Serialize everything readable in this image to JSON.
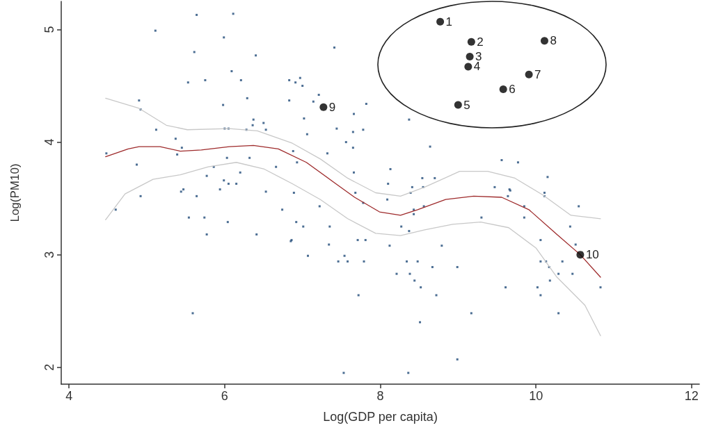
{
  "chart_data": {
    "type": "scatter",
    "xlabel": "Log(GDP per capita)",
    "ylabel": "Log(PM10)",
    "xlim": [
      3.9,
      12.1
    ],
    "ylim": [
      1.85,
      5.25
    ],
    "xticks": [
      4,
      6,
      8,
      10,
      12
    ],
    "yticks": [
      2,
      3,
      4,
      5
    ],
    "grid": false,
    "annotations": [
      {
        "text": "1",
        "x": 8.77,
        "y": 5.07
      },
      {
        "text": "2",
        "x": 9.17,
        "y": 4.89
      },
      {
        "text": "3",
        "x": 9.15,
        "y": 4.76
      },
      {
        "text": "4",
        "x": 9.13,
        "y": 4.67
      },
      {
        "text": "5",
        "x": 9.0,
        "y": 4.33
      },
      {
        "text": "6",
        "x": 9.58,
        "y": 4.47
      },
      {
        "text": "7",
        "x": 9.91,
        "y": 4.6
      },
      {
        "text": "8",
        "x": 10.11,
        "y": 4.9
      },
      {
        "text": "9",
        "x": 7.27,
        "y": 4.31
      },
      {
        "text": "10",
        "x": 10.57,
        "y": 3.0
      }
    ],
    "series": [
      {
        "marker": "square",
        "color": "#1f4a78",
        "x": [
          5.64,
          6.11,
          5.11,
          5.99,
          5.61,
          6.4,
          6.09,
          5.53,
          5.75,
          6.21,
          6.83,
          4.9,
          6.29,
          6.83,
          4.92,
          5.98,
          6.37,
          6.36,
          6.5,
          6.0,
          6.05,
          6.28,
          6.53,
          5.12,
          5.37,
          4.48,
          5.45,
          5.39,
          4.87,
          6.03,
          6.32,
          5.86,
          6.66,
          6.2,
          5.77,
          5.99,
          6.05,
          6.15,
          5.47,
          5.44,
          5.94,
          6.53,
          4.92,
          5.64,
          4.6,
          6.74,
          5.54,
          5.74,
          6.04,
          5.77,
          6.41,
          6.85,
          5.59,
          7.41,
          6.97,
          7.0,
          6.91,
          7.21,
          7.14,
          7.82,
          7.66,
          7.02,
          8.37,
          7.44,
          7.65,
          7.78,
          7.06,
          7.56,
          7.65,
          8.64,
          6.88,
          7.32,
          6.93,
          9.56,
          7.66,
          8.13,
          8.1,
          8.54,
          8.7,
          8.41,
          8.55,
          6.89,
          7.68,
          8.39,
          9.47,
          9.66,
          9.64,
          7.22,
          8.09,
          8.56,
          7.78,
          8.43,
          8.43,
          9.3,
          6.92,
          7.01,
          7.35,
          8.27,
          8.37,
          6.86,
          7.34,
          7.71,
          7.81,
          8.12,
          8.79,
          7.07,
          7.54,
          7.46,
          7.58,
          7.79,
          8.34,
          8.48,
          8.67,
          8.99,
          8.21,
          8.38,
          8.44,
          8.52,
          9.61,
          7.72,
          8.72,
          9.17,
          8.51,
          8.99,
          7.53,
          8.36,
          9.77,
          10.15,
          9.67,
          10.11,
          10.11,
          9.85,
          10.55,
          9.85,
          10.44,
          10.06,
          10.51,
          10.06,
          10.13,
          10.34,
          10.17,
          10.29,
          10.47,
          10.18,
          10.02,
          10.83,
          10.06,
          10.29
        ],
        "values": [
          5.13,
          5.14,
          4.99,
          4.93,
          4.8,
          4.77,
          4.63,
          4.53,
          4.55,
          4.55,
          4.55,
          4.37,
          4.39,
          4.37,
          4.29,
          4.33,
          4.2,
          4.15,
          4.17,
          4.12,
          4.12,
          4.11,
          4.11,
          4.11,
          4.03,
          3.9,
          3.95,
          3.89,
          3.8,
          3.86,
          3.86,
          3.78,
          3.78,
          3.73,
          3.7,
          3.66,
          3.63,
          3.63,
          3.58,
          3.56,
          3.58,
          3.56,
          3.52,
          3.52,
          3.4,
          3.4,
          3.33,
          3.33,
          3.29,
          3.18,
          3.18,
          3.12,
          2.48,
          4.84,
          4.57,
          4.5,
          4.53,
          4.42,
          4.36,
          4.34,
          4.25,
          4.21,
          4.2,
          4.12,
          4.09,
          4.11,
          4.07,
          4.0,
          3.95,
          3.96,
          3.92,
          3.9,
          3.82,
          3.84,
          3.73,
          3.76,
          3.63,
          3.68,
          3.68,
          3.6,
          3.6,
          3.55,
          3.55,
          3.55,
          3.6,
          3.58,
          3.52,
          3.43,
          3.49,
          3.43,
          3.46,
          3.4,
          3.36,
          3.33,
          3.29,
          3.25,
          3.25,
          3.25,
          3.21,
          3.13,
          3.09,
          3.13,
          3.13,
          3.08,
          3.08,
          2.99,
          2.99,
          2.94,
          2.94,
          2.94,
          2.94,
          2.94,
          2.89,
          2.89,
          2.83,
          2.83,
          2.77,
          2.71,
          2.71,
          2.64,
          2.64,
          2.48,
          2.4,
          2.07,
          1.95,
          1.95,
          3.82,
          3.69,
          3.57,
          3.55,
          3.52,
          3.43,
          3.43,
          3.33,
          3.25,
          3.13,
          3.09,
          2.94,
          2.94,
          2.94,
          2.89,
          2.83,
          2.83,
          2.77,
          2.71,
          2.71,
          2.64,
          2.48
        ]
      },
      {
        "marker": "circle",
        "color": "#000000",
        "x": [
          8.77,
          9.17,
          9.15,
          9.13,
          9.0,
          9.58,
          9.91,
          10.11,
          7.27,
          10.57
        ],
        "values": [
          5.07,
          4.89,
          4.76,
          4.67,
          4.33,
          4.47,
          4.6,
          4.9,
          4.31,
          3.0
        ]
      },
      {
        "type": "line",
        "marker": "none",
        "color": "#9e2a2b",
        "x": [
          4.47,
          4.76,
          4.9,
          5.17,
          5.43,
          5.7,
          6.06,
          6.37,
          6.69,
          7.05,
          7.41,
          7.67,
          7.99,
          8.26,
          8.48,
          8.84,
          9.2,
          9.56,
          9.91,
          10.27,
          10.57,
          10.83
        ],
        "values": [
          3.87,
          3.94,
          3.96,
          3.96,
          3.92,
          3.93,
          3.96,
          3.97,
          3.94,
          3.82,
          3.64,
          3.51,
          3.38,
          3.35,
          3.4,
          3.49,
          3.52,
          3.51,
          3.4,
          3.18,
          3.0,
          2.8
        ]
      },
      {
        "type": "line",
        "marker": "none",
        "color": "#c8c8c8",
        "x": [
          4.47,
          4.9,
          5.25,
          5.52,
          6.06,
          6.42,
          6.87,
          7.23,
          7.58,
          7.94,
          8.26,
          8.57,
          9.02,
          9.38,
          9.73,
          10.09,
          10.45,
          10.83
        ],
        "values": [
          4.39,
          4.3,
          4.15,
          4.11,
          4.12,
          4.1,
          3.99,
          3.85,
          3.68,
          3.55,
          3.52,
          3.6,
          3.74,
          3.74,
          3.68,
          3.53,
          3.35,
          3.32
        ]
      },
      {
        "type": "line",
        "marker": "none",
        "color": "#c8c8c8",
        "x": [
          4.47,
          4.72,
          5.08,
          5.43,
          5.79,
          6.15,
          6.51,
          6.87,
          7.23,
          7.58,
          7.94,
          8.26,
          8.57,
          8.93,
          9.29,
          9.65,
          10.0,
          10.27,
          10.63,
          10.83
        ],
        "values": [
          3.31,
          3.54,
          3.67,
          3.71,
          3.78,
          3.82,
          3.76,
          3.63,
          3.49,
          3.32,
          3.19,
          3.17,
          3.22,
          3.27,
          3.29,
          3.24,
          3.06,
          2.8,
          2.55,
          2.28
        ]
      }
    ]
  }
}
